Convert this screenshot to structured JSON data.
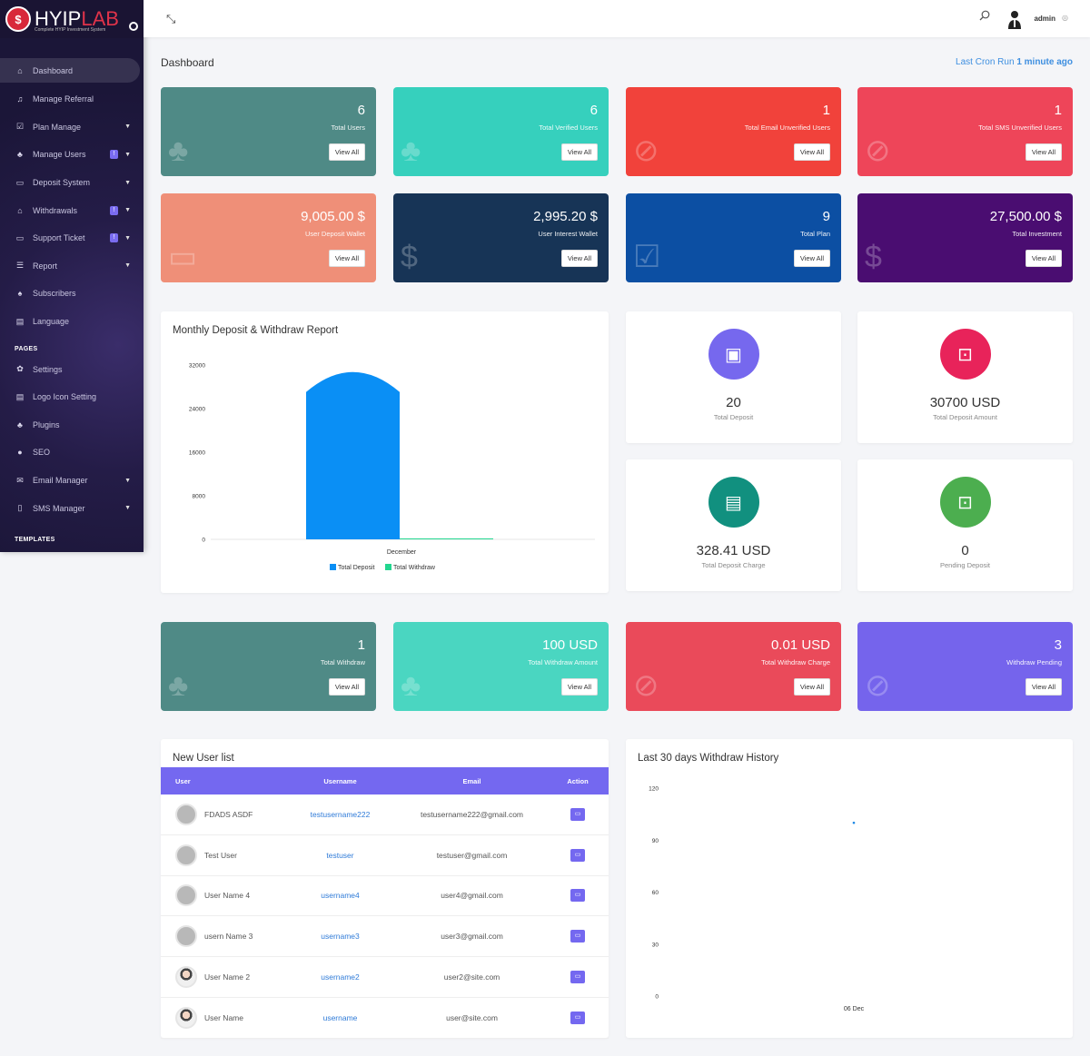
{
  "brand": {
    "name_a": "HYIP",
    "name_b": "LAB",
    "tagline": "Complete HYIP Investment System"
  },
  "sidebar": {
    "items": [
      {
        "label": "Dashboard",
        "icon": "home-icon"
      },
      {
        "label": "Manage Referral",
        "icon": "bell-icon"
      },
      {
        "label": "Plan Manage",
        "icon": "check-square-icon"
      },
      {
        "label": "Manage Users",
        "icon": "users-icon",
        "badge": "!"
      },
      {
        "label": "Deposit System",
        "icon": "credit-card-icon"
      },
      {
        "label": "Withdrawals",
        "icon": "bank-icon",
        "badge": "!"
      },
      {
        "label": "Support Ticket",
        "icon": "ticket-icon",
        "badge": "!"
      },
      {
        "label": "Report",
        "icon": "list-icon"
      },
      {
        "label": "Subscribers",
        "icon": "thumbs-up-icon"
      },
      {
        "label": "Language",
        "icon": "language-icon"
      }
    ],
    "pages_header": "PAGES",
    "pages": [
      {
        "label": "Settings",
        "icon": "settings-icon"
      },
      {
        "label": "Logo Icon Setting",
        "icon": "image-icon"
      },
      {
        "label": "Plugins",
        "icon": "plugin-icon"
      },
      {
        "label": "SEO",
        "icon": "globe-icon"
      },
      {
        "label": "Email Manager",
        "icon": "envelope-icon"
      },
      {
        "label": "SMS Manager",
        "icon": "mobile-icon"
      }
    ],
    "templates_header": "TEMPLATES"
  },
  "topbar": {
    "user": "admin"
  },
  "page": {
    "title": "Dashboard",
    "cron_prefix": "Last Cron Run",
    "cron_value": "1 minute ago"
  },
  "cards_row1": [
    {
      "num": "6",
      "label": "Total Users",
      "btn": "View All",
      "color": "#4f8a86"
    },
    {
      "num": "6",
      "label": "Total Verified Users",
      "btn": "View All",
      "color": "#36d0bd"
    },
    {
      "num": "1",
      "label": "Total Email Unverified Users",
      "btn": "View All",
      "color": "#f1423b"
    },
    {
      "num": "1",
      "label": "Total SMS Unverified Users",
      "btn": "View All",
      "color": "#ee4559"
    }
  ],
  "cards_row2": [
    {
      "num": "9,005.00 $",
      "label": "User Deposit Wallet",
      "btn": "View All",
      "color": "#ef8f78"
    },
    {
      "num": "2,995.20 $",
      "label": "User Interest Wallet",
      "btn": "View All",
      "color": "#173456"
    },
    {
      "num": "9",
      "label": "Total Plan",
      "btn": "View All",
      "color": "#0c4fa3"
    },
    {
      "num": "27,500.00 $",
      "label": "Total Investment",
      "btn": "View All",
      "color": "#4a0d71"
    }
  ],
  "deposit_report": {
    "title": "Monthly Deposit & Withdraw Report",
    "legend": [
      "Total Deposit",
      "Total Withdraw"
    ]
  },
  "chart_data": [
    {
      "type": "bar",
      "categories": [
        "December"
      ],
      "series": [
        {
          "name": "Total Deposit",
          "values": [
            30700
          ],
          "color": "#0a8ff5"
        },
        {
          "name": "Total Withdraw",
          "values": [
            100
          ],
          "color": "#22d68f"
        }
      ],
      "ylim": [
        0,
        32000
      ],
      "yticks": [
        "32000",
        "24000",
        "16000",
        "8000",
        "0"
      ]
    },
    {
      "type": "scatter",
      "x": [
        "06 Dec"
      ],
      "y": [
        100
      ],
      "ylim": [
        0,
        120
      ],
      "yticks": [
        "120",
        "90",
        "60",
        "30",
        "0"
      ],
      "xticks": [
        "06 Dec"
      ]
    }
  ],
  "minis": [
    {
      "value": "20",
      "label": "Total Deposit",
      "color": "#7668ee",
      "icon": "wallet-icon"
    },
    {
      "value": "30700 USD",
      "label": "Total Deposit Amount",
      "color": "#e8235a",
      "icon": "money-icon"
    },
    {
      "value": "328.41 USD",
      "label": "Total Deposit Charge",
      "color": "#11907f",
      "icon": "id-card-icon"
    },
    {
      "value": "0",
      "label": "Pending Deposit",
      "color": "#4cae4f",
      "icon": "cash-icon"
    }
  ],
  "cards_row3": [
    {
      "num": "1",
      "label": "Total Withdraw",
      "btn": "View All",
      "color": "#4f8a86"
    },
    {
      "num": "100 USD",
      "label": "Total Withdraw Amount",
      "btn": "View All",
      "color": "#4ad6c1"
    },
    {
      "num": "0.01 USD",
      "label": "Total Withdraw Charge",
      "btn": "View All",
      "color": "#ea4a5a"
    },
    {
      "num": "3",
      "label": "Withdraw Pending",
      "btn": "View All",
      "color": "#7564ec"
    }
  ],
  "users": {
    "title": "New User list",
    "headers": [
      "User",
      "Username",
      "Email",
      "Action"
    ],
    "rows": [
      {
        "name": "FDADS ASDF",
        "username": "testusername222",
        "email": "testusername222@gmail.com"
      },
      {
        "name": "Test User",
        "username": "testuser",
        "email": "testuser@gmail.com"
      },
      {
        "name": "User Name 4",
        "username": "username4",
        "email": "user4@gmail.com"
      },
      {
        "name": "usern Name 3",
        "username": "username3",
        "email": "user3@gmail.com"
      },
      {
        "name": "User Name 2",
        "username": "username2",
        "email": "user2@site.com"
      },
      {
        "name": "User Name",
        "username": "username",
        "email": "user@site.com"
      }
    ]
  },
  "withdraw_history": {
    "title": "Last 30 days Withdraw History"
  }
}
